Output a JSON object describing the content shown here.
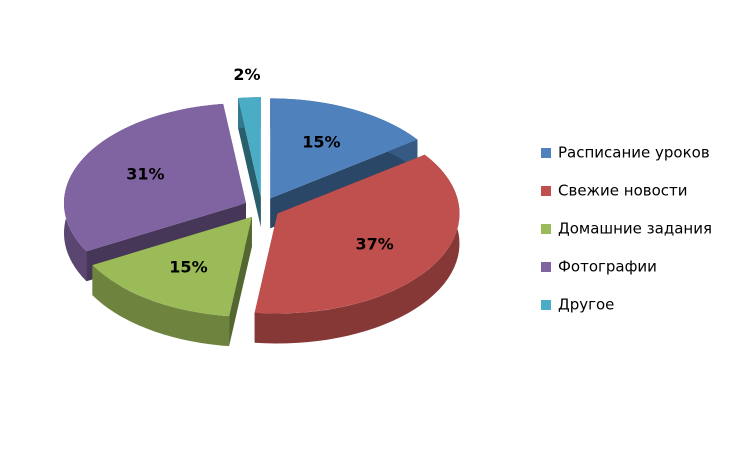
{
  "chart_data": {
    "type": "pie",
    "categories": [
      "Расписание уроков",
      "Свежие новости",
      "Домашние задания",
      "Фотографии",
      "Другое"
    ],
    "values": [
      15,
      37,
      15,
      31,
      2
    ],
    "value_labels": [
      "15%",
      "37%",
      "15%",
      "31%",
      "2%"
    ],
    "colors": [
      "#4f81bd",
      "#c0504d",
      "#9bbb59",
      "#8064a2",
      "#4bacc6"
    ],
    "legend": "right"
  }
}
